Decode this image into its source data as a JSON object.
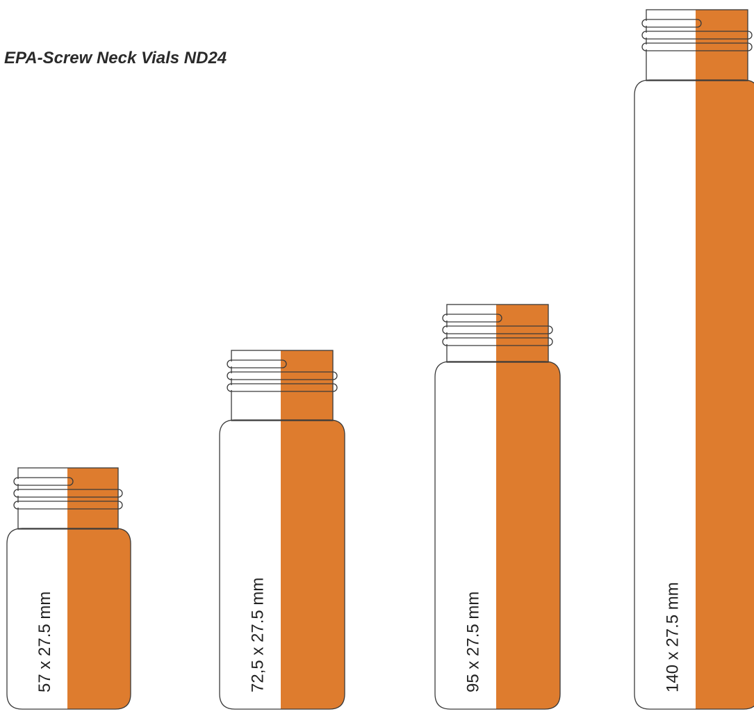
{
  "title": "EPA-Screw Neck Vials ND24",
  "colors": {
    "amber": "#DE7C2E",
    "outline": "#3a3a3a",
    "clear_glass": "#ffffff"
  },
  "vials": [
    {
      "label": "57 x 27.5 mm"
    },
    {
      "label": "72,5 x 27.5 mm"
    },
    {
      "label": "95 x 27.5 mm"
    },
    {
      "label": "140 x 27.5 mm"
    }
  ]
}
